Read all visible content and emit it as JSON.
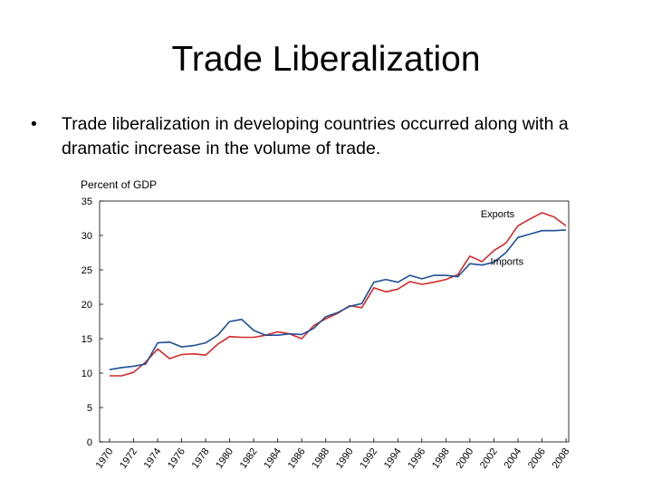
{
  "slide": {
    "title": "Trade Liberalization",
    "bullet_marker": "•",
    "bullet_text": "Trade liberalization in developing countries occurred along with a dramatic increase in the volume of trade."
  },
  "chart_data": {
    "type": "line",
    "title": "",
    "ylabel": "Percent of GDP",
    "xlabel": "",
    "ylim": [
      0,
      35
    ],
    "yticks": [
      0,
      5,
      10,
      15,
      20,
      25,
      30,
      35
    ],
    "xlim": [
      1970,
      2008
    ],
    "xticks": [
      "1970",
      "1972",
      "1974",
      "1976",
      "1978",
      "1980",
      "1982",
      "1984",
      "1986",
      "1988",
      "1990",
      "1992",
      "1994",
      "1996",
      "1998",
      "2000",
      "2002",
      "2004",
      "2006",
      "2008"
    ],
    "grid": false,
    "x": [
      1970,
      1971,
      1972,
      1973,
      1974,
      1975,
      1976,
      1977,
      1978,
      1979,
      1980,
      1981,
      1982,
      1983,
      1984,
      1985,
      1986,
      1987,
      1988,
      1989,
      1990,
      1991,
      1992,
      1993,
      1994,
      1995,
      1996,
      1997,
      1998,
      1999,
      2000,
      2001,
      2002,
      2003,
      2004,
      2005,
      2006,
      2007,
      2008
    ],
    "series": [
      {
        "name": "Exports",
        "color": "#d42a2a",
        "values": [
          9.6,
          9.6,
          10.1,
          11.6,
          13.5,
          12.1,
          12.7,
          12.8,
          12.6,
          14.2,
          15.3,
          15.2,
          15.2,
          15.5,
          16.0,
          15.7,
          15.0,
          16.9,
          17.9,
          18.7,
          19.8,
          19.5,
          22.4,
          21.8,
          22.2,
          23.3,
          22.9,
          23.2,
          23.6,
          24.3,
          27.0,
          26.2,
          27.8,
          28.9,
          31.4,
          32.4,
          33.3,
          32.7,
          31.4
        ]
      },
      {
        "name": "Imports",
        "color": "#1f4f96",
        "values": [
          10.5,
          10.8,
          11.0,
          11.3,
          14.4,
          14.5,
          13.8,
          14.0,
          14.4,
          15.5,
          17.5,
          17.8,
          16.2,
          15.5,
          15.5,
          15.7,
          15.6,
          16.5,
          18.2,
          18.8,
          19.7,
          20.1,
          23.2,
          23.6,
          23.2,
          24.2,
          23.7,
          24.2,
          24.2,
          24.0,
          25.9,
          25.7,
          26.1,
          27.5,
          29.7,
          30.2,
          30.7,
          30.7,
          30.8
        ]
      }
    ]
  }
}
